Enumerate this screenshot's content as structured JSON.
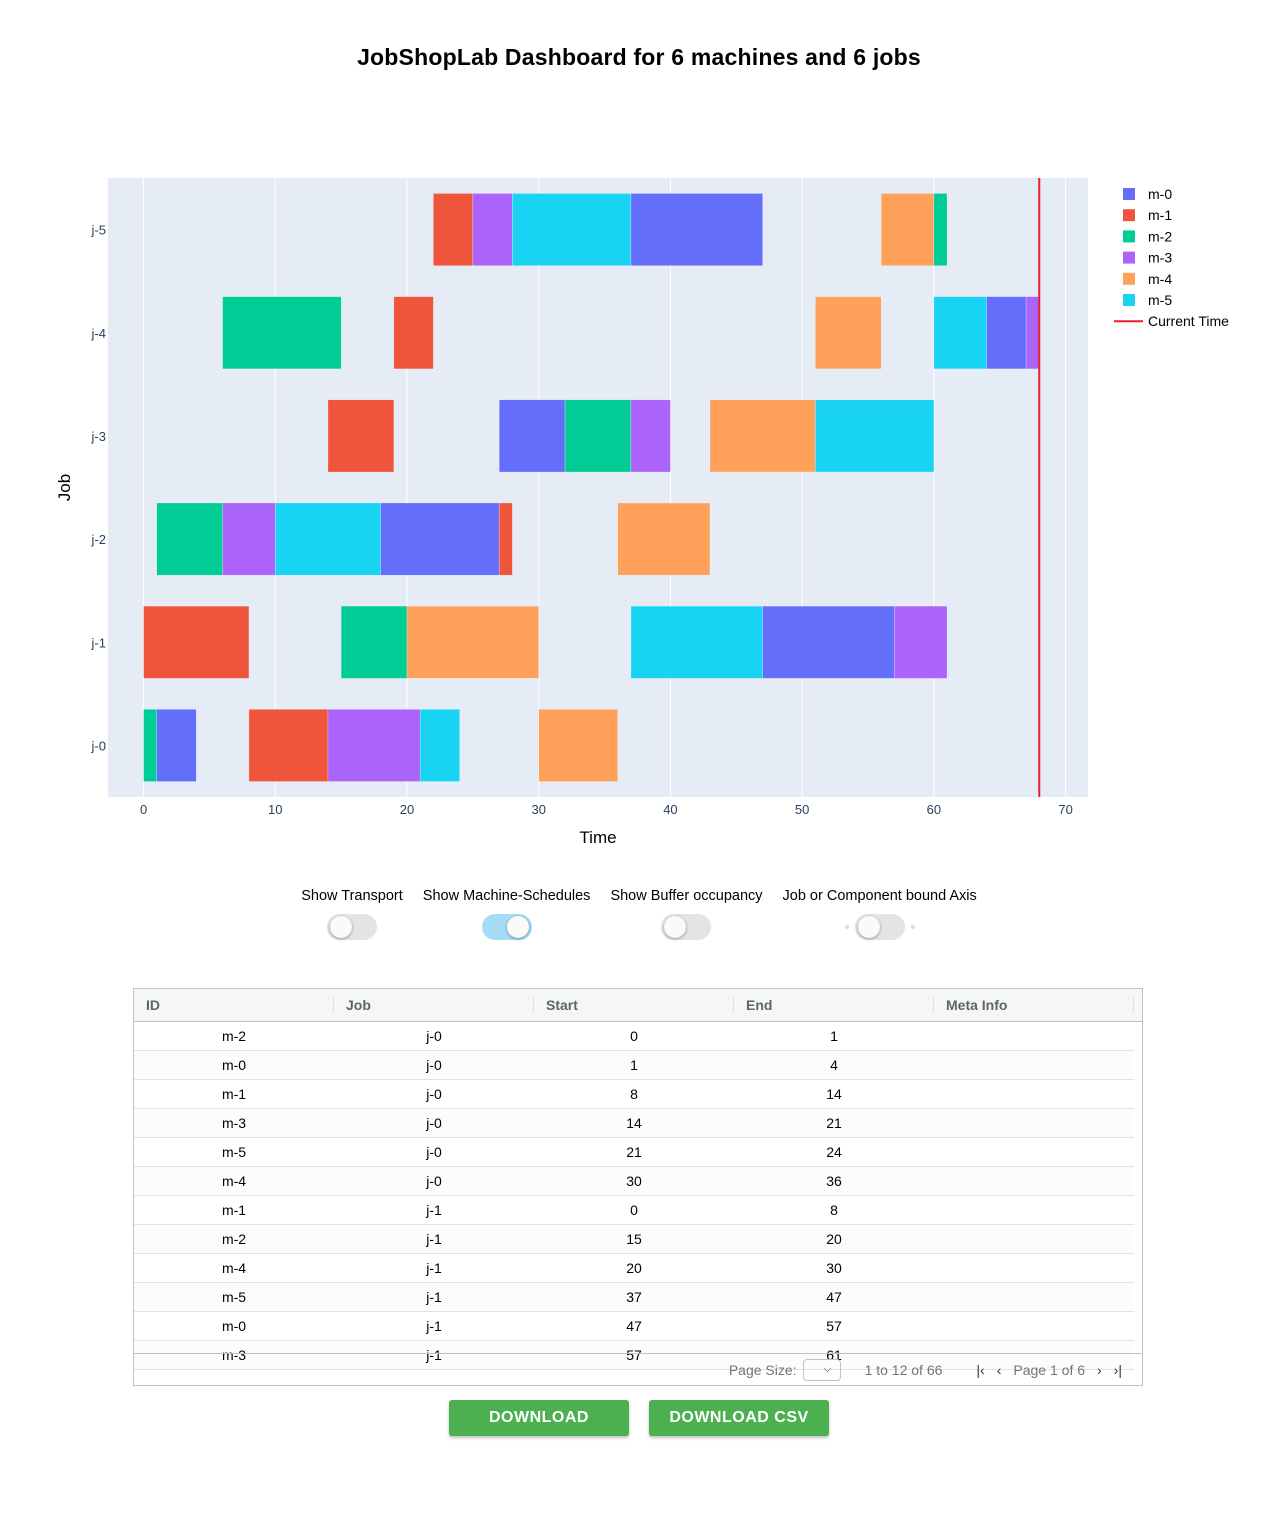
{
  "title": "JobShopLab Dashboard for 6 machines and 6 jobs",
  "chart_data": {
    "type": "gantt",
    "xlabel": "Time",
    "ylabel": "Job",
    "xlim": [
      -2.7,
      71.7
    ],
    "xticks": [
      0,
      10,
      20,
      30,
      40,
      50,
      60,
      70
    ],
    "jobs": [
      "j-0",
      "j-1",
      "j-2",
      "j-3",
      "j-4",
      "j-5"
    ],
    "machines": [
      {
        "name": "m-0",
        "color": "#636efa"
      },
      {
        "name": "m-1",
        "color": "#ef553b"
      },
      {
        "name": "m-2",
        "color": "#00cc96"
      },
      {
        "name": "m-3",
        "color": "#ab63fa"
      },
      {
        "name": "m-4",
        "color": "#ffa15a"
      },
      {
        "name": "m-5",
        "color": "#19d3f3"
      }
    ],
    "current_time": {
      "label": "Current Time",
      "value": 68,
      "color": "#e8202e"
    },
    "tasks": [
      {
        "job": "j-0",
        "machine": "m-2",
        "start": 0,
        "end": 1
      },
      {
        "job": "j-0",
        "machine": "m-0",
        "start": 1,
        "end": 4
      },
      {
        "job": "j-0",
        "machine": "m-1",
        "start": 8,
        "end": 14
      },
      {
        "job": "j-0",
        "machine": "m-3",
        "start": 14,
        "end": 21
      },
      {
        "job": "j-0",
        "machine": "m-5",
        "start": 21,
        "end": 24
      },
      {
        "job": "j-0",
        "machine": "m-4",
        "start": 30,
        "end": 36
      },
      {
        "job": "j-1",
        "machine": "m-1",
        "start": 0,
        "end": 8
      },
      {
        "job": "j-1",
        "machine": "m-2",
        "start": 15,
        "end": 20
      },
      {
        "job": "j-1",
        "machine": "m-4",
        "start": 20,
        "end": 30
      },
      {
        "job": "j-1",
        "machine": "m-5",
        "start": 37,
        "end": 47
      },
      {
        "job": "j-1",
        "machine": "m-0",
        "start": 47,
        "end": 57
      },
      {
        "job": "j-1",
        "machine": "m-3",
        "start": 57,
        "end": 61
      },
      {
        "job": "j-2",
        "machine": "m-2",
        "start": 1,
        "end": 6
      },
      {
        "job": "j-2",
        "machine": "m-3",
        "start": 6,
        "end": 10
      },
      {
        "job": "j-2",
        "machine": "m-5",
        "start": 10,
        "end": 18
      },
      {
        "job": "j-2",
        "machine": "m-0",
        "start": 18,
        "end": 27
      },
      {
        "job": "j-2",
        "machine": "m-1",
        "start": 27,
        "end": 28
      },
      {
        "job": "j-2",
        "machine": "m-4",
        "start": 36,
        "end": 43
      },
      {
        "job": "j-3",
        "machine": "m-1",
        "start": 14,
        "end": 19
      },
      {
        "job": "j-3",
        "machine": "m-0",
        "start": 27,
        "end": 32
      },
      {
        "job": "j-3",
        "machine": "m-2",
        "start": 32,
        "end": 37
      },
      {
        "job": "j-3",
        "machine": "m-3",
        "start": 37,
        "end": 40
      },
      {
        "job": "j-3",
        "machine": "m-4",
        "start": 43,
        "end": 51
      },
      {
        "job": "j-3",
        "machine": "m-5",
        "start": 51,
        "end": 60
      },
      {
        "job": "j-4",
        "machine": "m-2",
        "start": 6,
        "end": 15
      },
      {
        "job": "j-4",
        "machine": "m-1",
        "start": 19,
        "end": 22
      },
      {
        "job": "j-4",
        "machine": "m-4",
        "start": 51,
        "end": 56
      },
      {
        "job": "j-4",
        "machine": "m-5",
        "start": 60,
        "end": 64
      },
      {
        "job": "j-4",
        "machine": "m-0",
        "start": 64,
        "end": 67
      },
      {
        "job": "j-4",
        "machine": "m-3",
        "start": 67,
        "end": 68
      },
      {
        "job": "j-5",
        "machine": "m-1",
        "start": 22,
        "end": 25
      },
      {
        "job": "j-5",
        "machine": "m-3",
        "start": 25,
        "end": 28
      },
      {
        "job": "j-5",
        "machine": "m-5",
        "start": 28,
        "end": 37
      },
      {
        "job": "j-5",
        "machine": "m-0",
        "start": 37,
        "end": 47
      },
      {
        "job": "j-5",
        "machine": "m-4",
        "start": 56,
        "end": 60
      },
      {
        "job": "j-5",
        "machine": "m-2",
        "start": 60,
        "end": 61
      }
    ]
  },
  "toggles": [
    {
      "label": "Show Transport",
      "on": false
    },
    {
      "label": "Show Machine-Schedules",
      "on": true
    },
    {
      "label": "Show Buffer occupancy",
      "on": false
    },
    {
      "label": "Job or Component bound Axis",
      "on": false
    }
  ],
  "table": {
    "columns": [
      "ID",
      "Job",
      "Start",
      "End",
      "Meta Info"
    ],
    "rows": [
      [
        "m-2",
        "j-0",
        "0",
        "1",
        ""
      ],
      [
        "m-0",
        "j-0",
        "1",
        "4",
        ""
      ],
      [
        "m-1",
        "j-0",
        "8",
        "14",
        ""
      ],
      [
        "m-3",
        "j-0",
        "14",
        "21",
        ""
      ],
      [
        "m-5",
        "j-0",
        "21",
        "24",
        ""
      ],
      [
        "m-4",
        "j-0",
        "30",
        "36",
        ""
      ],
      [
        "m-1",
        "j-1",
        "0",
        "8",
        ""
      ],
      [
        "m-2",
        "j-1",
        "15",
        "20",
        ""
      ],
      [
        "m-4",
        "j-1",
        "20",
        "30",
        ""
      ],
      [
        "m-5",
        "j-1",
        "37",
        "47",
        ""
      ],
      [
        "m-0",
        "j-1",
        "47",
        "57",
        ""
      ],
      [
        "m-3",
        "j-1",
        "57",
        "61",
        ""
      ]
    ],
    "pager": {
      "page_size_label": "Page Size:",
      "range_text": "1 to 12 of 66",
      "page_text": "Page 1 of 6"
    }
  },
  "buttons": {
    "download": "DOWNLOAD",
    "download_csv": "DOWNLOAD CSV"
  }
}
